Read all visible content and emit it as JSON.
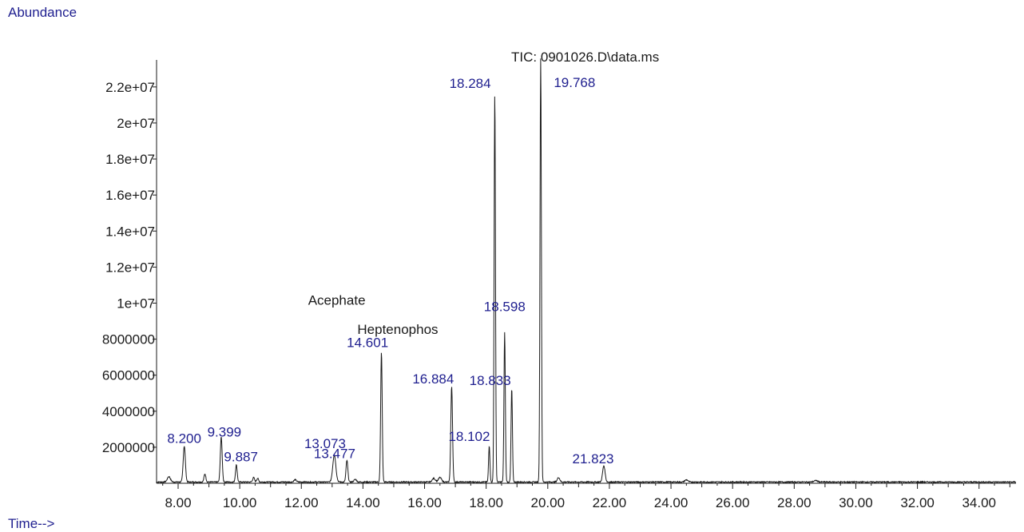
{
  "chart_data": {
    "type": "line",
    "title": "TIC: 0901026.D\\data.ms",
    "ylabel": "Abundance",
    "xlabel": "Time-->",
    "xlim": [
      7.3,
      35.2
    ],
    "ylim": [
      0,
      23500000
    ],
    "x_ticks": [
      8,
      10,
      12,
      14,
      16,
      18,
      20,
      22,
      24,
      26,
      28,
      30,
      32,
      34
    ],
    "x_tick_labels": [
      "8.00",
      "10.00",
      "12.00",
      "14.00",
      "16.00",
      "18.00",
      "20.00",
      "22.00",
      "24.00",
      "26.00",
      "28.00",
      "30.00",
      "32.00",
      "34.00"
    ],
    "y_ticks": [
      2000000,
      4000000,
      6000000,
      8000000,
      10000000,
      12000000,
      14000000,
      16000000,
      18000000,
      20000000,
      22000000
    ],
    "y_tick_labels": [
      "2000000",
      "4000000",
      "6000000",
      "8000000",
      "1e+07",
      "1.2e+07",
      "1.4e+07",
      "1.6e+07",
      "1.8e+07",
      "2e+07",
      "2.2e+07"
    ],
    "grid": false,
    "line_color": "#1a1a1a",
    "label_color": "#1f1f8f",
    "peaks": [
      {
        "rt": 7.7,
        "height": 300000,
        "width": 0.05
      },
      {
        "rt": 8.2,
        "height": 2000000,
        "width": 0.035,
        "label": "8.200",
        "label_dx": 0.0,
        "label_y": 2250000
      },
      {
        "rt": 8.87,
        "height": 450000,
        "width": 0.03
      },
      {
        "rt": 9.4,
        "height": 2500000,
        "width": 0.03,
        "label": "9.399",
        "label_dx": 0.1,
        "label_y": 2600000
      },
      {
        "rt": 9.89,
        "height": 950000,
        "width": 0.028,
        "label": "9.887",
        "label_dx": 0.15,
        "label_y": 1230000
      },
      {
        "rt": 10.45,
        "height": 250000,
        "width": 0.03
      },
      {
        "rt": 10.58,
        "height": 200000,
        "width": 0.03
      },
      {
        "rt": 11.8,
        "height": 130000,
        "width": 0.04
      },
      {
        "rt": 13.07,
        "height": 1500000,
        "width": 0.05,
        "label": "13.073",
        "label_dx": -0.3,
        "label_y": 1950000
      },
      {
        "rt": 13.48,
        "height": 1200000,
        "width": 0.03,
        "label": "13.477",
        "label_dx": -0.4,
        "label_y": 1400000
      },
      {
        "rt": 13.75,
        "height": 150000,
        "width": 0.04
      },
      {
        "rt": 14.6,
        "height": 7200000,
        "width": 0.025,
        "label": "14.601",
        "label_dx": -0.45,
        "label_y": 7550000,
        "name": "Acephate",
        "name_dx": -1.45,
        "name_y": 9900000
      },
      {
        "rt": 16.3,
        "height": 200000,
        "width": 0.05
      },
      {
        "rt": 16.5,
        "height": 250000,
        "width": 0.05
      },
      {
        "rt": 16.88,
        "height": 5300000,
        "width": 0.028,
        "label": "16.884",
        "label_dx": -0.6,
        "label_y": 5550000,
        "name": "Heptenophos",
        "name_dx": -1.75,
        "name_y": 8300000
      },
      {
        "rt": 18.1,
        "height": 2000000,
        "width": 0.022,
        "label": "18.102",
        "label_dx": -0.65,
        "label_y": 2350000
      },
      {
        "rt": 18.28,
        "height": 21500000,
        "width": 0.022,
        "label": "18.284",
        "label_dx": -0.8,
        "label_y": 21950000
      },
      {
        "rt": 18.6,
        "height": 8300000,
        "width": 0.022,
        "label": "18.598",
        "label_dx": 0.0,
        "label_y": 9550000
      },
      {
        "rt": 18.83,
        "height": 5200000,
        "width": 0.022,
        "label": "18.833",
        "label_dx": -0.7,
        "label_y": 5450000
      },
      {
        "rt": 19.77,
        "height": 23500000,
        "width": 0.022,
        "label": "19.768",
        "label_dx": 1.1,
        "label_y": 22000000
      },
      {
        "rt": 20.35,
        "height": 250000,
        "width": 0.04
      },
      {
        "rt": 21.82,
        "height": 900000,
        "width": 0.04,
        "label": "21.823",
        "label_dx": -0.35,
        "label_y": 1100000
      },
      {
        "rt": 24.5,
        "height": 120000,
        "width": 0.05
      },
      {
        "rt": 28.7,
        "height": 80000,
        "width": 0.06
      }
    ]
  },
  "labels": {
    "ylabel": "Abundance",
    "xlabel": "Time-->",
    "title": "TIC: 0901026.D\\data.ms"
  }
}
